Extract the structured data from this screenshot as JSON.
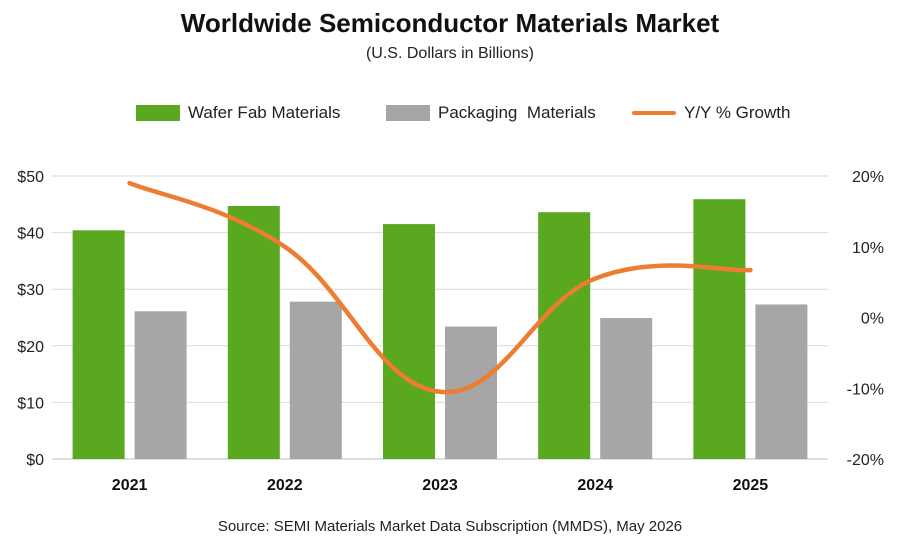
{
  "chart_data": {
    "type": "bar",
    "title": "Worldwide Semiconductor Materials Market",
    "subtitle": "(U.S. Dollars in Billions)",
    "categories": [
      "2021",
      "2022",
      "2023",
      "2024",
      "2025"
    ],
    "series": [
      {
        "name": "Wafer Fab Materials",
        "type": "bar",
        "axis": "left",
        "color": "#5aa720",
        "values": [
          40.4,
          44.7,
          41.5,
          43.6,
          45.9
        ]
      },
      {
        "name": "Packaging  Materials",
        "type": "bar",
        "axis": "left",
        "color": "#a6a6a6",
        "values": [
          26.1,
          27.8,
          23.4,
          24.9,
          27.3
        ]
      },
      {
        "name": "Y/Y % Growth",
        "type": "line",
        "axis": "right",
        "color": "#ed7d31",
        "values": [
          19.0,
          10.0,
          -10.5,
          5.5,
          6.7
        ]
      }
    ],
    "y_left": {
      "min": 0,
      "max": 50,
      "step": 10,
      "tick_labels": [
        "$0",
        "$10",
        "$20",
        "$30",
        "$40",
        "$50"
      ]
    },
    "y_right": {
      "min": -20,
      "max": 20,
      "step": 10,
      "tick_labels": [
        "-20%",
        "-10%",
        "0%",
        "10%",
        "20%"
      ]
    },
    "grid": true,
    "legend_position": "top"
  },
  "source_note": "Source:  SEMI Materials Market Data Subscription (MMDS), May 2026"
}
